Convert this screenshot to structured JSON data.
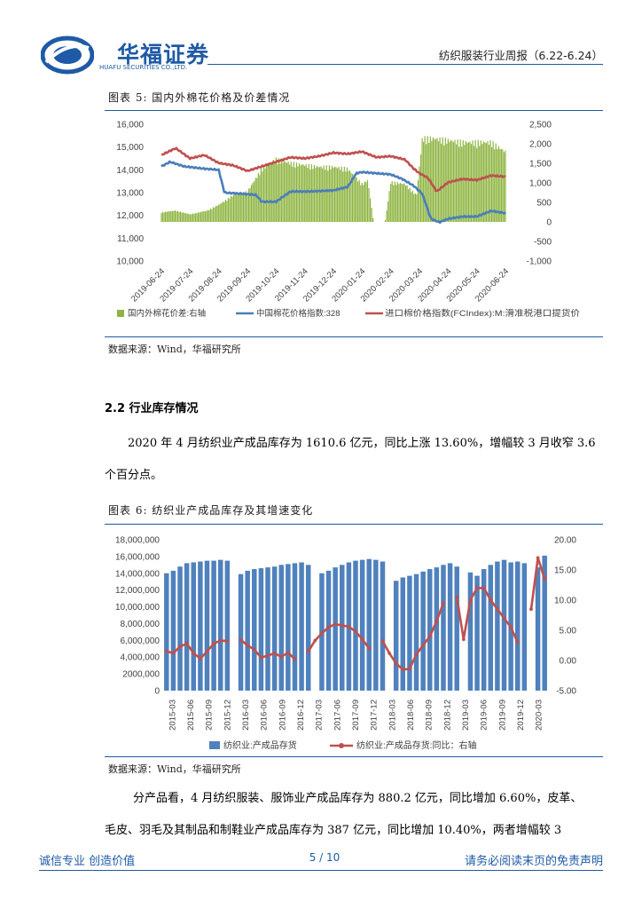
{
  "header": {
    "logo_cn": "华福证券",
    "logo_en": "HUAFU SECURITIES CO.,LTD.",
    "report_title": "纺织服装行业周报（6.22-6.24）",
    "brand_color": "#1f5aa6"
  },
  "figure5": {
    "title": "图表 5:  国内外棉花价格及价差情况",
    "source": "数据来源：Wind，华福研究所",
    "chart_data": {
      "type": "bar+line",
      "title": "国内外棉花价格及价差情况",
      "y_left_ticks": [
        "16,000",
        "15,000",
        "14,000",
        "13,000",
        "12,000",
        "11,000",
        "10,000"
      ],
      "y_right_ticks": [
        "2,500",
        "2,000",
        "1,500",
        "1,000",
        "500",
        "0",
        "-500",
        "-1,000"
      ],
      "ylim_left": [
        10000,
        16000
      ],
      "ylim_right": [
        -1000,
        2500
      ],
      "x_ticks": [
        "2019-06-24",
        "2019-07-24",
        "2019-08-24",
        "2019-09-24",
        "2019-10-24",
        "2019-11-24",
        "2019-12-24",
        "2020-01-24",
        "2020-02-24",
        "2020-03-24",
        "2020-04-24",
        "2020-05-24",
        "2020-06-24"
      ],
      "x_months_since_start": [
        0,
        1,
        2,
        3,
        4,
        5,
        6,
        7,
        8,
        9,
        10,
        11,
        12
      ],
      "series": [
        {
          "name": "国内外棉花价差:右轴",
          "axis": "right",
          "kind": "bar",
          "color": "#8db440",
          "points": [
            [
              0,
              250
            ],
            [
              0.5,
              300
            ],
            [
              1,
              200
            ],
            [
              1.6,
              300
            ],
            [
              2,
              450
            ],
            [
              2.5,
              700
            ],
            [
              3,
              800
            ],
            [
              3.5,
              1400
            ],
            [
              4,
              1650
            ],
            [
              4.5,
              1550
            ],
            [
              5,
              1500
            ],
            [
              5.5,
              1450
            ],
            [
              6,
              1450
            ],
            [
              6.5,
              1400
            ],
            [
              7,
              1000
            ],
            [
              7.2,
              1100
            ],
            [
              7.4,
              0
            ],
            [
              7.6,
              0
            ],
            [
              7.8,
              0
            ],
            [
              8,
              1050
            ],
            [
              8.5,
              1000
            ],
            [
              8.9,
              700
            ],
            [
              9.1,
              2200
            ],
            [
              9.5,
              2200
            ],
            [
              10,
              2150
            ],
            [
              10.5,
              2100
            ],
            [
              11,
              2100
            ],
            [
              11.5,
              2100
            ],
            [
              12,
              1850
            ]
          ]
        },
        {
          "name": "中国棉花价格指数:328",
          "axis": "left",
          "kind": "line",
          "color": "#4a7ebb",
          "points": [
            [
              0,
              14150
            ],
            [
              0.3,
              14350
            ],
            [
              0.8,
              14150
            ],
            [
              1.5,
              14050
            ],
            [
              2,
              14000
            ],
            [
              2.2,
              13000
            ],
            [
              2.8,
              12950
            ],
            [
              3.3,
              12900
            ],
            [
              3.5,
              12600
            ],
            [
              4,
              12600
            ],
            [
              4.5,
              13050
            ],
            [
              5.2,
              13050
            ],
            [
              6,
              13100
            ],
            [
              6.5,
              13250
            ],
            [
              6.8,
              13850
            ],
            [
              7,
              13900
            ],
            [
              7.5,
              13850
            ],
            [
              8,
              13800
            ],
            [
              8.4,
              13600
            ],
            [
              8.8,
              13300
            ],
            [
              9.1,
              12950
            ],
            [
              9.4,
              11850
            ],
            [
              9.7,
              11700
            ],
            [
              10,
              11850
            ],
            [
              10.5,
              11950
            ],
            [
              11,
              11950
            ],
            [
              11.5,
              12200
            ],
            [
              12,
              12100
            ]
          ]
        },
        {
          "name": "进口棉价格指数(FCIndex):M:滑准税港口提货价",
          "axis": "left",
          "kind": "line",
          "color": "#c0504d",
          "points": [
            [
              0,
              14650
            ],
            [
              0.5,
              14950
            ],
            [
              1,
              14500
            ],
            [
              1.5,
              14650
            ],
            [
              2,
              14300
            ],
            [
              2.5,
              14200
            ],
            [
              3,
              13950
            ],
            [
              3.5,
              14150
            ],
            [
              4,
              14350
            ],
            [
              4.5,
              14550
            ],
            [
              5,
              14500
            ],
            [
              5.5,
              14600
            ],
            [
              6,
              14750
            ],
            [
              6.5,
              14700
            ],
            [
              7,
              14800
            ],
            [
              7.5,
              14550
            ],
            [
              8,
              14600
            ],
            [
              8.5,
              14450
            ],
            [
              8.8,
              14050
            ],
            [
              9,
              13850
            ],
            [
              9.3,
              13650
            ],
            [
              9.6,
              13050
            ],
            [
              10,
              13450
            ],
            [
              10.5,
              13600
            ],
            [
              11,
              13550
            ],
            [
              11.5,
              13750
            ],
            [
              12,
              13700
            ]
          ]
        }
      ]
    }
  },
  "section": {
    "title": "2.2 行业库存情况",
    "para1_line1": "2020 年 4 月纺织业产成品库存为 1610.6 亿元，同比上涨 13.60%，增幅较 3 月收窄 3.6",
    "para1_line2": "个百分点。"
  },
  "figure6": {
    "title": "图表 6:  纺织业产成品库存及其增速变化",
    "source": "数据来源：Wind，华福研究所",
    "chart_data": {
      "type": "bar+line",
      "title": "纺织业产成品库存及其增速变化",
      "y_left_ticks": [
        "18,000,000",
        "16,000,000",
        "14,000,000",
        "12,000,000",
        "10,000,000",
        "8,000,000",
        "6,000,000",
        "4,000,000",
        "2000,000",
        "0"
      ],
      "y_right_ticks": [
        "20.00",
        "15.00",
        "10.00",
        "5.00",
        "0.00",
        "-5.00"
      ],
      "ylim_left": [
        0,
        18000000
      ],
      "ylim_right": [
        -5,
        20
      ],
      "x_ticks": [
        "2015-03",
        "2015-06",
        "2015-09",
        "2015-12",
        "2016-03",
        "2016-06",
        "2016-09",
        "2016-12",
        "2017-03",
        "2017-06",
        "2017-09",
        "2017-12",
        "2018-03",
        "2018-06",
        "2018-09",
        "2018-12",
        "2019-03",
        "2019-06",
        "2019-09",
        "2019-12",
        "2020-03"
      ],
      "series": [
        {
          "name": "纺织业:产成品存货",
          "axis": "left",
          "kind": "bar",
          "color": "#4f81bd",
          "values": [
            14000000,
            14300000,
            14800000,
            15200000,
            15300000,
            15400000,
            15500000,
            15500000,
            15600000,
            15500000,
            null,
            13900000,
            14300000,
            14500000,
            14600000,
            14700000,
            14800000,
            15000000,
            15100000,
            15200000,
            15300000,
            15000000,
            null,
            14000000,
            14300000,
            14700000,
            15000000,
            15300000,
            15500000,
            15600000,
            15700000,
            15600000,
            15400000,
            null,
            13100000,
            13500000,
            13700000,
            13900000,
            14200000,
            14500000,
            14700000,
            15000000,
            15200000,
            14800000,
            null,
            14100000,
            13700000,
            14500000,
            15000000,
            15400000,
            15600000,
            15300000,
            15400000,
            15200000,
            null,
            14700000,
            16100000
          ]
        },
        {
          "name": "纺织业:产成品存货:同比：右轴",
          "axis": "right",
          "kind": "line",
          "color": "#c0504d",
          "values": [
            1.5,
            1.2,
            2.3,
            2.8,
            1.2,
            0.3,
            1.5,
            2.8,
            3.3,
            3.2,
            null,
            3.4,
            2.5,
            1.8,
            0.5,
            0.8,
            1.2,
            0.6,
            1.3,
            0.2,
            null,
            1.5,
            3.3,
            4.5,
            5.5,
            6.0,
            5.8,
            5.6,
            4.8,
            3.5,
            2.0,
            null,
            3.2,
            1.2,
            -0.5,
            -1.5,
            -1.4,
            1.0,
            2.5,
            4.0,
            6.5,
            9.5,
            null,
            10.5,
            3.5,
            10.0,
            12.0,
            12.0,
            10.0,
            8.5,
            7.0,
            5.5,
            3.0,
            null,
            8.5,
            17.0,
            13.5
          ]
        }
      ]
    }
  },
  "para2": {
    "line1": "分产品看，4 月纺织服装、服饰业产成品库存为 880.2 亿元，同比增加 6.60%，皮革、",
    "line2": "毛皮、羽毛及其制品和制鞋业产成品库存为 387 亿元，同比增加 10.40%，两者增幅较 3"
  },
  "footer": {
    "left": "诚信专业  创造价值",
    "page": "5 / 10",
    "right": "请务必阅读末页的免责声明"
  }
}
